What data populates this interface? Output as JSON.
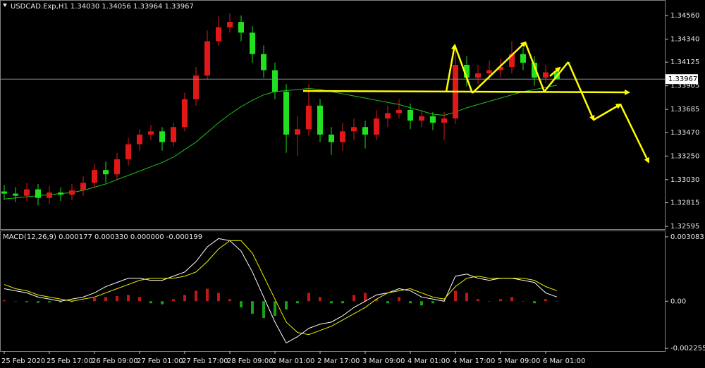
{
  "chart_data": [
    {
      "type": "candlestick",
      "title": "USDCAD.Exp,H1  1.34030  1.34056  1.33964  1.33967",
      "categories": [
        "25 Feb 2020",
        null,
        null,
        null,
        "25 Feb 17:00",
        null,
        null,
        null,
        "26 Feb 09:00",
        null,
        null,
        null,
        "27 Feb 01:00",
        null,
        null,
        null,
        "27 Feb 17:00",
        null,
        null,
        null,
        "28 Feb 09:00",
        null,
        null,
        null,
        "2 Mar 01:00",
        null,
        null,
        null,
        "2 Mar 17:00",
        null,
        null,
        null,
        "3 Mar 09:00",
        null,
        null,
        null,
        "4 Mar 01:00",
        null,
        null,
        null,
        "4 Mar 17:00",
        null,
        null,
        null,
        "5 Mar 09:00",
        null,
        null,
        null,
        "6 Mar 01:00",
        null
      ],
      "open": [
        1.3292,
        1.329,
        1.3288,
        1.3294,
        1.3286,
        1.3291,
        1.3289,
        1.3293,
        1.33,
        1.3312,
        1.3308,
        1.3322,
        1.3336,
        1.3345,
        1.3348,
        1.3338,
        1.3352,
        1.3378,
        1.34,
        1.3432,
        1.3445,
        1.345,
        1.344,
        1.342,
        1.3405,
        1.3385,
        1.3345,
        1.335,
        1.3372,
        1.3345,
        1.3338,
        1.3348,
        1.3352,
        1.3345,
        1.336,
        1.3365,
        1.3368,
        1.3358,
        1.3362,
        1.3356,
        1.336,
        1.341,
        1.3398,
        1.3402,
        1.3405,
        1.3408,
        1.342,
        1.3412,
        1.3398,
        1.3403
      ],
      "high": [
        1.3298,
        1.3296,
        1.33,
        1.3299,
        1.3297,
        1.3296,
        1.3299,
        1.3306,
        1.3318,
        1.332,
        1.3328,
        1.3342,
        1.335,
        1.3354,
        1.3352,
        1.3356,
        1.3384,
        1.3408,
        1.3442,
        1.3455,
        1.3458,
        1.3456,
        1.3446,
        1.3428,
        1.3412,
        1.3392,
        1.3362,
        1.3392,
        1.3378,
        1.3352,
        1.3356,
        1.336,
        1.3358,
        1.3368,
        1.3372,
        1.3378,
        1.3374,
        1.3368,
        1.3366,
        1.3366,
        1.3428,
        1.3418,
        1.341,
        1.3414,
        1.3416,
        1.3432,
        1.3426,
        1.3418,
        1.341,
        1.34056
      ],
      "low": [
        1.3284,
        1.3282,
        1.3283,
        1.3279,
        1.328,
        1.3283,
        1.3284,
        1.3288,
        1.3295,
        1.33,
        1.3302,
        1.3316,
        1.333,
        1.334,
        1.333,
        1.3334,
        1.3348,
        1.3372,
        1.3396,
        1.3428,
        1.344,
        1.3432,
        1.3412,
        1.3398,
        1.3378,
        1.3328,
        1.3325,
        1.3344,
        1.3338,
        1.3326,
        1.333,
        1.334,
        1.3332,
        1.334,
        1.3352,
        1.336,
        1.335,
        1.3352,
        1.3349,
        1.334,
        1.3355,
        1.339,
        1.3392,
        1.3396,
        1.3398,
        1.3402,
        1.3405,
        1.339,
        1.3393,
        1.33964
      ],
      "close": [
        1.329,
        1.3288,
        1.3294,
        1.3286,
        1.3291,
        1.3289,
        1.3293,
        1.33,
        1.3312,
        1.3308,
        1.3322,
        1.3336,
        1.3345,
        1.3348,
        1.3338,
        1.3352,
        1.3378,
        1.34,
        1.3432,
        1.3445,
        1.345,
        1.344,
        1.342,
        1.3405,
        1.3385,
        1.3345,
        1.335,
        1.3372,
        1.3345,
        1.3338,
        1.3348,
        1.3352,
        1.3345,
        1.336,
        1.3365,
        1.3368,
        1.3358,
        1.3362,
        1.3356,
        1.336,
        1.341,
        1.3398,
        1.3402,
        1.3405,
        1.3408,
        1.342,
        1.3412,
        1.3398,
        1.3403,
        1.33967
      ],
      "up_color": "#e01818",
      "down_color": "#20e020",
      "lines": [
        {
          "color": "#20c020",
          "values": [
            1.3285,
            1.3286,
            1.3287,
            1.3288,
            1.3289,
            1.329,
            1.3291,
            1.3293,
            1.3296,
            1.3299,
            1.3303,
            1.3307,
            1.3311,
            1.3315,
            1.3319,
            1.3324,
            1.3331,
            1.3338,
            1.3347,
            1.3356,
            1.3364,
            1.3371,
            1.3377,
            1.3382,
            1.3385,
            1.3386,
            1.3387,
            1.3388,
            1.3387,
            1.3385,
            1.3383,
            1.3381,
            1.3379,
            1.3377,
            1.3375,
            1.3373,
            1.337,
            1.3367,
            1.3364,
            1.3363,
            1.3366,
            1.337,
            1.3373,
            1.3376,
            1.3379,
            1.3382,
            1.3385,
            1.3387,
            1.3389,
            1.3391
          ]
        }
      ],
      "current_price": 1.33967,
      "ylim": [
        1.32569,
        1.34691
      ],
      "yticks": [
        {
          "value": 1.3456,
          "label": "1.34560"
        },
        {
          "value": 1.3434,
          "label": "1.34340"
        },
        {
          "value": 1.34125,
          "label": "1.34125"
        },
        {
          "value": 1.33905,
          "label": "1.33905"
        },
        {
          "value": 1.33685,
          "label": "1.33685"
        },
        {
          "value": 1.3347,
          "label": "1.33470"
        },
        {
          "value": 1.3325,
          "label": "1.33250"
        },
        {
          "value": 1.3303,
          "label": "1.33030"
        },
        {
          "value": 1.32815,
          "label": "1.32815"
        },
        {
          "value": 1.32595,
          "label": "1.32595"
        }
      ]
    },
    {
      "type": "macd",
      "title": "MACD(12,26,9) 0.000177 0.000330 0.000000 -0.000199",
      "values": [
        5e-05,
        0,
        -5e-05,
        -8e-05,
        -6e-05,
        -5e-05,
        -4e-05,
        0,
        0.00015,
        0.0002,
        0.00025,
        0.0003,
        0.0002,
        -0.0001,
        -0.00015,
        0.0001,
        0.0003,
        0.0005,
        0.0006,
        0.0004,
        0.0001,
        -0.0003,
        -0.0006,
        -0.0008,
        -0.0007,
        -0.0004,
        -0.0001,
        0.0004,
        0.0002,
        -0.0001,
        -0.0001,
        0.0003,
        0.0004,
        0.0001,
        -0.0001,
        0.0002,
        -0.0001,
        -0.0002,
        -0.0001,
        0,
        0.0005,
        0.0004,
        0.0001,
        0,
        0.0001,
        0.0002,
        0,
        -0.0001,
        0.0001,
        0
      ],
      "pos_color": "#c01818",
      "neg_color": "#18a018",
      "lines": [
        {
          "color": "#ffffff",
          "values": [
            0.0006,
            0.0005,
            0.0004,
            0.0002,
            0.0001,
            0,
            0.0001,
            0.0002,
            0.0004,
            0.0007,
            0.0009,
            0.0011,
            0.0011,
            0.001,
            0.001,
            0.0012,
            0.0014,
            0.0019,
            0.0026,
            0.003,
            0.0029,
            0.0024,
            0.0014,
            0.0002,
            -0.001,
            -0.002,
            -0.0017,
            -0.0013,
            -0.0011,
            -0.001,
            -0.0007,
            -0.0003,
            0,
            0.0003,
            0.0004,
            0.0006,
            0.0005,
            0.0002,
            0.0001,
            0,
            0.0012,
            0.0013,
            0.0011,
            0.001,
            0.0011,
            0.0011,
            0.001,
            0.0009,
            0.0004,
            0.0002
          ]
        },
        {
          "color": "#f0f000",
          "values": [
            0.0008,
            0.0006,
            0.0005,
            0.0003,
            0.0002,
            0.0001,
            0,
            0.0001,
            0.0002,
            0.0004,
            0.0006,
            0.0008,
            0.001,
            0.0011,
            0.0011,
            0.0011,
            0.0012,
            0.0014,
            0.0019,
            0.0025,
            0.0029,
            0.0029,
            0.0023,
            0.0012,
            0.0001,
            -0.001,
            -0.0015,
            -0.0016,
            -0.0014,
            -0.0012,
            -0.0009,
            -0.0006,
            -0.0003,
            0.0001,
            0.0004,
            0.0005,
            0.0006,
            0.0004,
            0.0002,
            0.0001,
            0.0007,
            0.0011,
            0.0012,
            0.0011,
            0.0011,
            0.0011,
            0.0011,
            0.001,
            0.0007,
            0.0005
          ]
        }
      ],
      "ylim": [
        -0.002389,
        0.003352
      ],
      "yticks": [
        0.003083,
        {
          "value": 0,
          "label": "0.00"
        },
        -0.002255
      ]
    }
  ]
}
